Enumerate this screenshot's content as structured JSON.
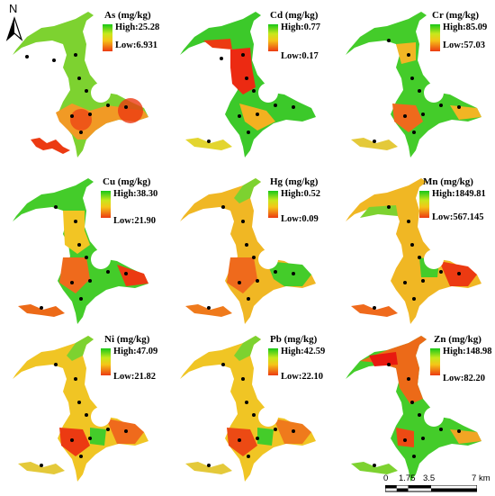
{
  "compass": {
    "label": "N"
  },
  "colors": {
    "high": "#18c718",
    "mid": "#f5c518",
    "low": "#ec3a12"
  },
  "panels": [
    {
      "title": "As (mg/kg)",
      "high": "High:25.28",
      "low": "Low:6.931"
    },
    {
      "title": "Cd (mg/kg)",
      "high": "High:0.77",
      "low": "Low:0.17"
    },
    {
      "title": "Cr (mg/kg)",
      "high": "High:85.09",
      "low": "Low:57.03"
    },
    {
      "title": "Cu (mg/kg)",
      "high": "High:38.30",
      "low": "Low:21.90"
    },
    {
      "title": "Hg (mg/kg)",
      "high": "High:0.52",
      "low": "Low:0.09"
    },
    {
      "title": "Mn (mg/kg)",
      "high": "High:1849.81",
      "low": "Low:567.145"
    },
    {
      "title": "Ni (mg/kg)",
      "high": "High:47.09",
      "low": "Low:21.82"
    },
    {
      "title": "Pb (mg/kg)",
      "high": "High:42.59",
      "low": "Low:22.10"
    },
    {
      "title": "Zn (mg/kg)",
      "high": "High:148.98",
      "low": "Low:82.20"
    }
  ],
  "scale": {
    "ticks": [
      "0",
      "1.75",
      "3.5",
      "7"
    ],
    "unit": "km"
  }
}
